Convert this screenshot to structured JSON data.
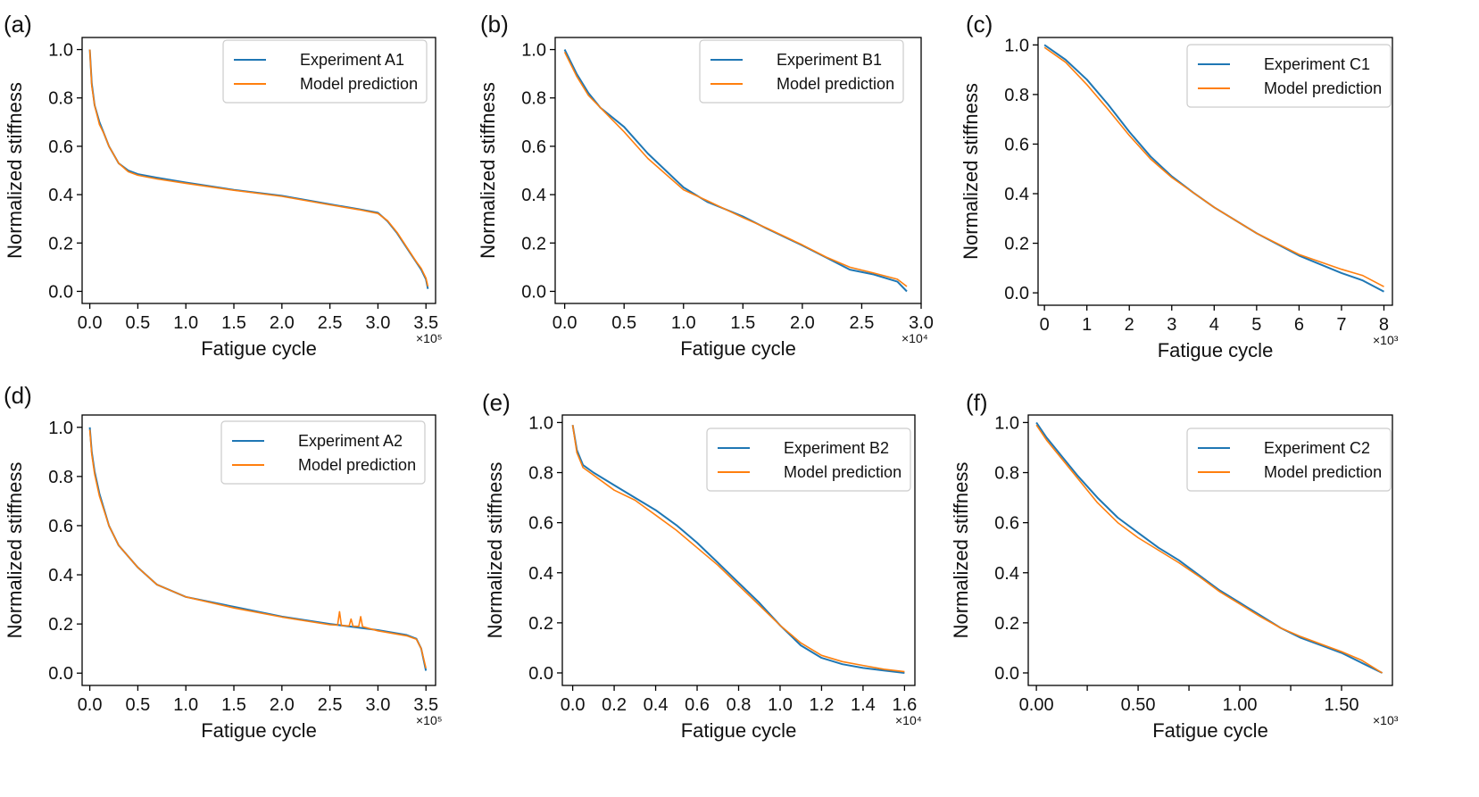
{
  "colors": {
    "experiment": "#1f77b4",
    "model": "#ff7f0e"
  },
  "chart_data": [
    {
      "type": "line",
      "panel": "(a)",
      "xlabel": "Fatigue cycle",
      "ylabel": "Normalized stiffness",
      "offset": "×10⁵",
      "xlim": [
        -0.08,
        3.6
      ],
      "ylim": [
        -0.05,
        1.05
      ],
      "xticks": [
        0,
        0.5,
        1.0,
        1.5,
        2.0,
        2.5,
        3.0,
        3.5
      ],
      "xtick_labels": [
        "0.0",
        "0.5",
        "1.0",
        "1.5",
        "2.0",
        "2.5",
        "3.0",
        "3.5"
      ],
      "yticks": [
        0,
        0.2,
        0.4,
        0.6,
        0.8,
        1.0
      ],
      "ytick_labels": [
        "0.0",
        "0.2",
        "0.4",
        "0.6",
        "0.8",
        "1.0"
      ],
      "legend": "top-right",
      "series": [
        {
          "name": "Experiment  A1",
          "color": "#1f77b4",
          "x": [
            0,
            0.02,
            0.05,
            0.1,
            0.15,
            0.2,
            0.3,
            0.4,
            0.5,
            0.7,
            1.0,
            1.5,
            2.0,
            2.5,
            2.8,
            3.0,
            3.1,
            3.2,
            3.3,
            3.4,
            3.45,
            3.5,
            3.52
          ],
          "y": [
            1.0,
            0.86,
            0.77,
            0.7,
            0.65,
            0.6,
            0.53,
            0.5,
            0.485,
            0.47,
            0.45,
            0.42,
            0.395,
            0.36,
            0.34,
            0.325,
            0.29,
            0.24,
            0.18,
            0.12,
            0.09,
            0.05,
            0.01
          ]
        },
        {
          "name": "Model prediction",
          "color": "#ff7f0e",
          "x": [
            0,
            0.02,
            0.05,
            0.1,
            0.15,
            0.2,
            0.3,
            0.4,
            0.5,
            0.7,
            1.0,
            1.5,
            2.0,
            2.5,
            2.8,
            3.0,
            3.1,
            3.2,
            3.3,
            3.4,
            3.45,
            3.5,
            3.52
          ],
          "y": [
            1.0,
            0.85,
            0.77,
            0.69,
            0.65,
            0.6,
            0.53,
            0.495,
            0.48,
            0.465,
            0.447,
            0.418,
            0.393,
            0.358,
            0.338,
            0.322,
            0.292,
            0.243,
            0.183,
            0.122,
            0.095,
            0.055,
            0.02
          ]
        }
      ]
    },
    {
      "type": "line",
      "panel": "(b)",
      "xlabel": "Fatigue cycle",
      "ylabel": "Normalized stiffness",
      "offset": "×10⁴",
      "xlim": [
        -0.08,
        3.0
      ],
      "ylim": [
        -0.05,
        1.05
      ],
      "xticks": [
        0,
        0.5,
        1.0,
        1.5,
        2.0,
        2.5,
        3.0
      ],
      "xtick_labels": [
        "0.0",
        "0.5",
        "1.0",
        "1.5",
        "2.0",
        "2.5",
        "3.0"
      ],
      "yticks": [
        0,
        0.2,
        0.4,
        0.6,
        0.8,
        1.0
      ],
      "ytick_labels": [
        "0.0",
        "0.2",
        "0.4",
        "0.6",
        "0.8",
        "1.0"
      ],
      "legend": "top-right",
      "series": [
        {
          "name": "Experiment  B1",
          "color": "#1f77b4",
          "x": [
            0,
            0.1,
            0.2,
            0.3,
            0.5,
            0.7,
            1.0,
            1.2,
            1.5,
            1.7,
            2.0,
            2.2,
            2.4,
            2.6,
            2.8,
            2.88
          ],
          "y": [
            1.0,
            0.9,
            0.82,
            0.76,
            0.68,
            0.57,
            0.43,
            0.37,
            0.31,
            0.26,
            0.19,
            0.14,
            0.09,
            0.07,
            0.04,
            0.0
          ]
        },
        {
          "name": "Model prediction",
          "color": "#ff7f0e",
          "x": [
            0,
            0.1,
            0.2,
            0.3,
            0.5,
            0.7,
            1.0,
            1.2,
            1.5,
            1.7,
            2.0,
            2.2,
            2.4,
            2.6,
            2.8,
            2.88
          ],
          "y": [
            0.99,
            0.89,
            0.81,
            0.76,
            0.66,
            0.55,
            0.42,
            0.375,
            0.305,
            0.262,
            0.192,
            0.142,
            0.1,
            0.076,
            0.05,
            0.02
          ]
        }
      ]
    },
    {
      "type": "line",
      "panel": "(c)",
      "xlabel": "Fatigue cycle",
      "ylabel": "Normalized stiffness",
      "offset": "×10³",
      "xlim": [
        -0.15,
        8.2
      ],
      "ylim": [
        -0.05,
        1.03
      ],
      "xticks": [
        0,
        1,
        2,
        3,
        4,
        5,
        6,
        7,
        8
      ],
      "xtick_labels": [
        "0",
        "1",
        "2",
        "3",
        "4",
        "5",
        "6",
        "7",
        "8"
      ],
      "yticks": [
        0,
        0.2,
        0.4,
        0.6,
        0.8,
        1.0
      ],
      "ytick_labels": [
        "0.0",
        "0.2",
        "0.4",
        "0.6",
        "0.8",
        "1.0"
      ],
      "legend": "top-right",
      "series": [
        {
          "name": "Experiment  C1",
          "color": "#1f77b4",
          "x": [
            0,
            0.5,
            1,
            1.5,
            2,
            2.5,
            3,
            3.5,
            4,
            5,
            6,
            7,
            7.5,
            8
          ],
          "y": [
            1.0,
            0.94,
            0.86,
            0.76,
            0.65,
            0.55,
            0.47,
            0.405,
            0.345,
            0.24,
            0.15,
            0.08,
            0.05,
            0.005
          ]
        },
        {
          "name": "Model prediction",
          "color": "#ff7f0e",
          "x": [
            0,
            0.5,
            1,
            1.5,
            2,
            2.5,
            3,
            3.5,
            4,
            5,
            6,
            7,
            7.5,
            8
          ],
          "y": [
            0.99,
            0.93,
            0.84,
            0.74,
            0.635,
            0.54,
            0.465,
            0.405,
            0.345,
            0.24,
            0.155,
            0.095,
            0.07,
            0.025
          ]
        }
      ]
    },
    {
      "type": "line",
      "panel": "(d)",
      "xlabel": "Fatigue cycle",
      "ylabel": "Normalized stiffness",
      "offset": "×10⁵",
      "xlim": [
        -0.08,
        3.6
      ],
      "ylim": [
        -0.05,
        1.05
      ],
      "xticks": [
        0,
        0.5,
        1.0,
        1.5,
        2.0,
        2.5,
        3.0,
        3.5
      ],
      "xtick_labels": [
        "0.0",
        "0.5",
        "1.0",
        "1.5",
        "2.0",
        "2.5",
        "3.0",
        "3.5"
      ],
      "yticks": [
        0,
        0.2,
        0.4,
        0.6,
        0.8,
        1.0
      ],
      "ytick_labels": [
        "0.0",
        "0.2",
        "0.4",
        "0.6",
        "0.8",
        "1.0"
      ],
      "legend": "top-right",
      "series": [
        {
          "name": "Experiment  A2",
          "color": "#1f77b4",
          "x": [
            0,
            0.02,
            0.05,
            0.1,
            0.2,
            0.3,
            0.5,
            0.7,
            1.0,
            1.5,
            2.0,
            2.5,
            3.0,
            3.3,
            3.4,
            3.45,
            3.5
          ],
          "y": [
            1.0,
            0.9,
            0.82,
            0.73,
            0.6,
            0.52,
            0.43,
            0.36,
            0.31,
            0.27,
            0.23,
            0.2,
            0.175,
            0.155,
            0.14,
            0.1,
            0.01
          ]
        },
        {
          "name": "Model prediction",
          "color": "#ff7f0e",
          "x": [
            0,
            0.02,
            0.05,
            0.1,
            0.2,
            0.3,
            0.5,
            0.7,
            1.0,
            1.5,
            2.0,
            2.5,
            2.58,
            2.6,
            2.62,
            2.7,
            2.72,
            2.74,
            2.8,
            2.82,
            2.84,
            3.0,
            3.3,
            3.4,
            3.45,
            3.5
          ],
          "y": [
            0.99,
            0.89,
            0.81,
            0.72,
            0.6,
            0.52,
            0.43,
            0.36,
            0.31,
            0.265,
            0.228,
            0.197,
            0.195,
            0.25,
            0.194,
            0.192,
            0.22,
            0.191,
            0.19,
            0.23,
            0.189,
            0.172,
            0.152,
            0.138,
            0.1,
            0.02
          ]
        }
      ]
    },
    {
      "type": "line",
      "panel": "(e)",
      "xlabel": "Fatigue cycle",
      "ylabel": "Normalized stiffness",
      "offset": "×10⁴",
      "xlim": [
        -0.05,
        1.65
      ],
      "ylim": [
        -0.05,
        1.03
      ],
      "xticks": [
        0,
        0.2,
        0.4,
        0.6,
        0.8,
        1.0,
        1.2,
        1.4,
        1.6
      ],
      "xtick_labels": [
        "0.0",
        "0.2",
        "0.4",
        "0.6",
        "0.8",
        "1.0",
        "1.2",
        "1.4",
        "1.6"
      ],
      "yticks": [
        0,
        0.2,
        0.4,
        0.6,
        0.8,
        1.0
      ],
      "ytick_labels": [
        "0.0",
        "0.2",
        "0.4",
        "0.6",
        "0.8",
        "1.0"
      ],
      "legend": "top-right",
      "series": [
        {
          "name": "Experiment  B2",
          "color": "#1f77b4",
          "x": [
            0,
            0.02,
            0.05,
            0.1,
            0.2,
            0.3,
            0.4,
            0.5,
            0.6,
            0.7,
            0.8,
            0.9,
            1.0,
            1.1,
            1.2,
            1.3,
            1.4,
            1.5,
            1.6
          ],
          "y": [
            0.99,
            0.89,
            0.83,
            0.8,
            0.75,
            0.7,
            0.65,
            0.59,
            0.52,
            0.44,
            0.36,
            0.28,
            0.19,
            0.11,
            0.06,
            0.035,
            0.02,
            0.01,
            0.0
          ]
        },
        {
          "name": "Model prediction",
          "color": "#ff7f0e",
          "x": [
            0,
            0.02,
            0.05,
            0.1,
            0.2,
            0.3,
            0.4,
            0.5,
            0.6,
            0.7,
            0.8,
            0.9,
            1.0,
            1.1,
            1.2,
            1.3,
            1.4,
            1.5,
            1.6
          ],
          "y": [
            0.99,
            0.88,
            0.82,
            0.79,
            0.73,
            0.69,
            0.63,
            0.57,
            0.5,
            0.43,
            0.35,
            0.27,
            0.19,
            0.12,
            0.07,
            0.045,
            0.03,
            0.015,
            0.005
          ]
        }
      ]
    },
    {
      "type": "line",
      "panel": "(f)",
      "xlabel": "Fatigue cycle",
      "ylabel": "Normalized stiffness",
      "offset": "×10³",
      "xlim": [
        -0.04,
        1.75
      ],
      "ylim": [
        -0.05,
        1.03
      ],
      "xticks": [
        0,
        0.25,
        0.5,
        0.75,
        1.0,
        1.25,
        1.5
      ],
      "xtick_labels": [
        "0.00",
        "",
        "0.50",
        "",
        "1.00",
        "",
        "1.50"
      ],
      "yticks": [
        0,
        0.2,
        0.4,
        0.6,
        0.8,
        1.0
      ],
      "ytick_labels": [
        "0.0",
        "0.2",
        "0.4",
        "0.6",
        "0.8",
        "1.0"
      ],
      "legend": "top-right",
      "series": [
        {
          "name": "Experiment  C2",
          "color": "#1f77b4",
          "x": [
            0,
            0.05,
            0.1,
            0.2,
            0.3,
            0.4,
            0.5,
            0.6,
            0.7,
            0.8,
            0.9,
            1.0,
            1.1,
            1.2,
            1.3,
            1.4,
            1.5,
            1.6,
            1.7
          ],
          "y": [
            1.0,
            0.94,
            0.89,
            0.79,
            0.7,
            0.62,
            0.56,
            0.5,
            0.45,
            0.39,
            0.33,
            0.28,
            0.23,
            0.18,
            0.14,
            0.11,
            0.08,
            0.04,
            0.0
          ]
        },
        {
          "name": "Model prediction",
          "color": "#ff7f0e",
          "x": [
            0,
            0.05,
            0.1,
            0.2,
            0.3,
            0.4,
            0.5,
            0.6,
            0.7,
            0.8,
            0.9,
            1.0,
            1.1,
            1.2,
            1.3,
            1.4,
            1.5,
            1.6,
            1.7
          ],
          "y": [
            0.99,
            0.93,
            0.88,
            0.78,
            0.68,
            0.6,
            0.54,
            0.49,
            0.44,
            0.385,
            0.325,
            0.275,
            0.225,
            0.18,
            0.145,
            0.115,
            0.085,
            0.05,
            0.0
          ]
        }
      ]
    }
  ]
}
